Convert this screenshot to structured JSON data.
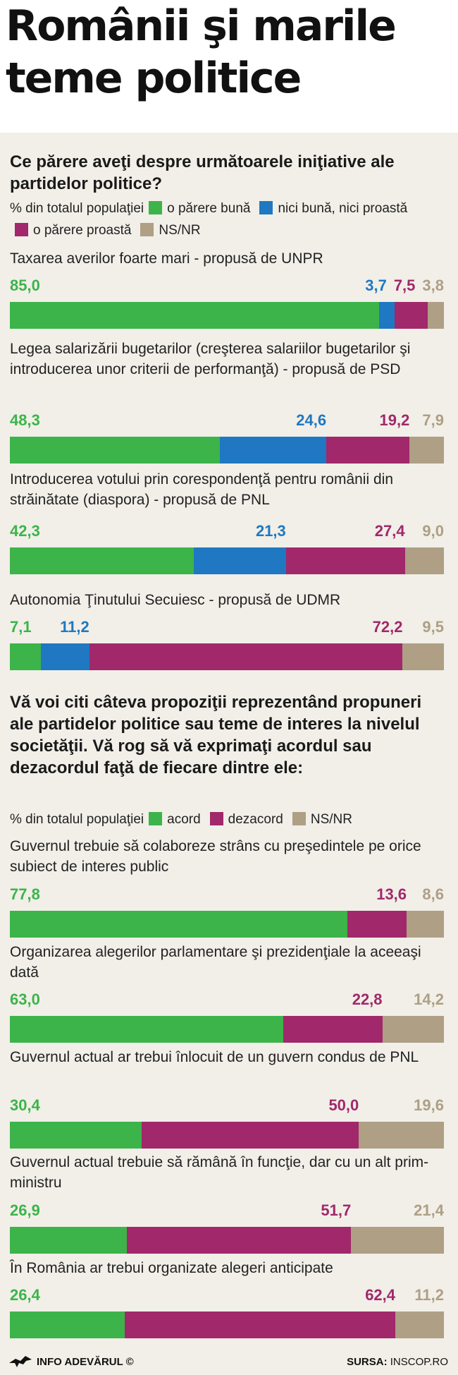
{
  "title": "Românii şi marile teme politice",
  "colors": {
    "green": "#3cb44a",
    "blue": "#1f78c1",
    "magenta": "#a1286a",
    "taupe": "#ae9f85"
  },
  "sections": [
    {
      "question": "Ce părere aveţi despre următoarele iniţiative ale partidelor politice?",
      "legend_prefix": "% din totalul populaţiei",
      "legend": [
        {
          "label": "o părere bună",
          "color": "#3cb44a"
        },
        {
          "label": "nici bună, nici proastă",
          "color": "#1f78c1"
        },
        {
          "label": "o părere proastă",
          "color": "#a1286a"
        },
        {
          "label": "NS/NR",
          "color": "#ae9f85"
        }
      ]
    },
    {
      "question": "Vă voi citi câteva propoziţii reprezentând propuneri ale partidelor politice sau teme de interes la nivelul societăţii. Vă rog să vă exprimaţi acordul sau dezacordul faţă de fiecare dintre ele:",
      "legend_prefix": "% din totalul populaţiei",
      "legend": [
        {
          "label": "acord",
          "color": "#3cb44a"
        },
        {
          "label": "dezacord",
          "color": "#a1286a"
        },
        {
          "label": "NS/NR",
          "color": "#ae9f85"
        }
      ]
    }
  ],
  "chart_data": [
    {
      "type": "bar",
      "stacked": true,
      "orientation": "horizontal",
      "series_names": [
        "o părere bună",
        "nici bună, nici proastă",
        "o părere proastă",
        "NS/NR"
      ],
      "series_colors": [
        "#3cb44a",
        "#1f78c1",
        "#a1286a",
        "#ae9f85"
      ],
      "rows": [
        {
          "label": "Taxarea averilor foarte mari - propusă de UNPR",
          "values": [
            85.0,
            3.7,
            7.5,
            3.8
          ],
          "display": [
            "85,0",
            "3,7",
            "7,5",
            "3,8"
          ]
        },
        {
          "label": "Legea salarizării bugetarilor (creşterea salariilor bugetarilor şi introducerea unor criterii de performanţă) - propusă de PSD",
          "values": [
            48.3,
            24.6,
            19.2,
            7.9
          ],
          "display": [
            "48,3",
            "24,6",
            "19,2",
            "7,9"
          ]
        },
        {
          "label": "Introducerea votului prin corespondenţă pentru românii din străinătate (diaspora) - propusă de PNL",
          "values": [
            42.3,
            21.3,
            27.4,
            9.0
          ],
          "display": [
            "42,3",
            "21,3",
            "27,4",
            "9,0"
          ]
        },
        {
          "label": "Autonomia Ţinutului Secuiesc - propusă de UDMR",
          "values": [
            7.1,
            11.2,
            72.2,
            9.5
          ],
          "display": [
            "7,1",
            "11,2",
            "72,2",
            "9,5"
          ]
        }
      ]
    },
    {
      "type": "bar",
      "stacked": true,
      "orientation": "horizontal",
      "series_names": [
        "acord",
        "dezacord",
        "NS/NR"
      ],
      "series_colors": [
        "#3cb44a",
        "#a1286a",
        "#ae9f85"
      ],
      "rows": [
        {
          "label": "Guvernul trebuie să colaboreze strâns cu preşedintele pe orice subiect de interes public",
          "values": [
            77.8,
            13.6,
            8.6
          ],
          "display": [
            "77,8",
            "13,6",
            "8,6"
          ]
        },
        {
          "label": "Organizarea alegerilor parlamentare şi prezidenţiale la aceeaşi dată",
          "values": [
            63.0,
            22.8,
            14.2
          ],
          "display": [
            "63,0",
            "22,8",
            "14,2"
          ]
        },
        {
          "label": "Guvernul actual ar trebui înlocuit de un guvern condus de PNL",
          "values": [
            30.4,
            50.0,
            19.6
          ],
          "display": [
            "30,4",
            "50,0",
            "19,6"
          ]
        },
        {
          "label": "Guvernul actual trebuie să rămână în funcţie, dar cu un alt prim-ministru",
          "values": [
            26.9,
            51.7,
            21.4
          ],
          "display": [
            "26,9",
            "51,7",
            "21,4"
          ]
        },
        {
          "label": "În România ar trebui organizate alegeri anticipate",
          "values": [
            26.4,
            62.4,
            11.2
          ],
          "display": [
            "26,4",
            "62,4",
            "11,2"
          ]
        }
      ]
    }
  ],
  "footer": {
    "credit": "INFO ADEVĂRUL ©",
    "source_label": "SURSA:",
    "source_value": "INSCOP.RO"
  }
}
